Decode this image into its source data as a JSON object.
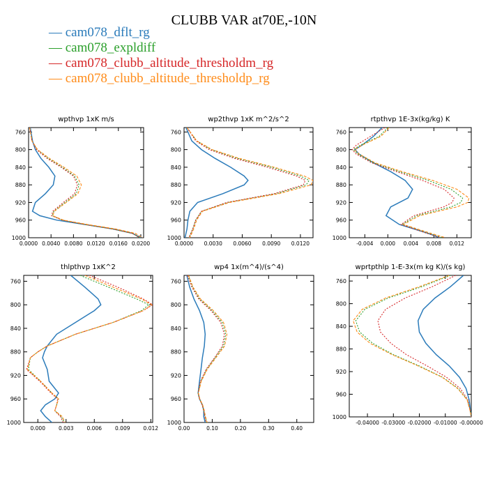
{
  "title": "CLUBB VAR at70E,-10N",
  "legend": [
    {
      "name": "cam078_dflt_rg",
      "color": "#2b7bba"
    },
    {
      "name": "cam078_expldiff",
      "color": "#2ca02c"
    },
    {
      "name": "cam078_clubb_altitude_thresholdm_rg",
      "color": "#d62728"
    },
    {
      "name": "cam078_clubb_altitude_thresholdp_rg",
      "color": "#ff8c1a"
    }
  ],
  "chart_data": [
    {
      "type": "line",
      "title": "wpthvp   1xK m/s",
      "xlim": [
        0,
        0.0205
      ],
      "ylim": [
        1000,
        750
      ],
      "xticks": [
        "0.0000",
        "0.0040",
        "0.0080",
        "0.0120",
        "0.0160",
        "0.0200"
      ],
      "xtick_values": [
        0,
        0.004,
        0.008,
        0.012,
        0.016,
        0.02
      ],
      "yticks": [
        760,
        800,
        840,
        880,
        920,
        960,
        1000
      ],
      "y": [
        750,
        780,
        800,
        820,
        840,
        860,
        880,
        900,
        920,
        940,
        950,
        960,
        970,
        980,
        990,
        1000
      ],
      "series": [
        {
          "name": "cam078_dflt_rg",
          "x": [
            0.0003,
            0.0007,
            0.0012,
            0.0022,
            0.0036,
            0.0047,
            0.0044,
            0.003,
            0.0012,
            0.0007,
            0.002,
            0.005,
            0.01,
            0.015,
            0.0185,
            0.02
          ]
        },
        {
          "name": "cam078_expldiff",
          "x": [
            0.0002,
            0.0006,
            0.0015,
            0.0035,
            0.006,
            0.0082,
            0.009,
            0.0085,
            0.0065,
            0.0045,
            0.0042,
            0.006,
            0.01,
            0.015,
            0.0185,
            0.0198
          ]
        },
        {
          "name": "cam078_clubb_altitude_thresholdm_rg",
          "x": [
            0.0002,
            0.0006,
            0.0014,
            0.0033,
            0.0058,
            0.008,
            0.0087,
            0.0082,
            0.0062,
            0.0043,
            0.0041,
            0.006,
            0.01,
            0.015,
            0.0185,
            0.0198
          ]
        },
        {
          "name": "cam078_clubb_altitude_thresholdp_rg",
          "x": [
            0.0002,
            0.0006,
            0.0016,
            0.0037,
            0.0063,
            0.0086,
            0.0094,
            0.0088,
            0.0067,
            0.0046,
            0.0043,
            0.0062,
            0.0105,
            0.0155,
            0.019,
            0.0203
          ]
        }
      ]
    },
    {
      "type": "line",
      "title": "wp2thvp   1xK m^2/s^2",
      "xlim": [
        0,
        0.0133
      ],
      "ylim": [
        1000,
        750
      ],
      "xticks": [
        "0.0000",
        "0.0030",
        "0.0060",
        "0.0090",
        "0.0120"
      ],
      "xtick_values": [
        0,
        0.003,
        0.006,
        0.009,
        0.012
      ],
      "yticks": [
        760,
        800,
        840,
        880,
        920,
        960,
        1000
      ],
      "y": [
        750,
        780,
        800,
        820,
        840,
        860,
        870,
        880,
        900,
        920,
        940,
        960,
        980,
        1000
      ],
      "series": [
        {
          "name": "cam078_dflt_rg",
          "x": [
            0.0002,
            0.0008,
            0.0018,
            0.0032,
            0.0048,
            0.0062,
            0.0066,
            0.0062,
            0.004,
            0.0014,
            0.0006,
            0.0004,
            0.0003,
            0.0001
          ]
        },
        {
          "name": "cam078_expldiff",
          "x": [
            0.0003,
            0.0013,
            0.0028,
            0.0055,
            0.009,
            0.012,
            0.0129,
            0.0126,
            0.0095,
            0.0045,
            0.0018,
            0.0012,
            0.0009,
            0.0005
          ]
        },
        {
          "name": "cam078_clubb_altitude_thresholdm_rg",
          "x": [
            0.0003,
            0.0012,
            0.0026,
            0.0052,
            0.0086,
            0.0116,
            0.0125,
            0.0123,
            0.0093,
            0.0044,
            0.0018,
            0.0012,
            0.0009,
            0.0005
          ]
        },
        {
          "name": "cam078_clubb_altitude_thresholdp_rg",
          "x": [
            0.0003,
            0.0013,
            0.0029,
            0.0057,
            0.0093,
            0.0124,
            0.0133,
            0.0131,
            0.0098,
            0.0047,
            0.0019,
            0.0013,
            0.001,
            0.0006
          ]
        }
      ]
    },
    {
      "type": "line",
      "title": "rtpthvp   1E-3x(kg/kg) K",
      "xlim": [
        -0.0067,
        0.0145
      ],
      "ylim": [
        1000,
        750
      ],
      "xticks": [
        "-0.004",
        "0.000",
        "0.004",
        "0.008",
        "0.012"
      ],
      "xtick_values": [
        -0.004,
        0,
        0.004,
        0.008,
        0.012
      ],
      "yticks": [
        760,
        800,
        840,
        880,
        920,
        960,
        1000
      ],
      "y": [
        750,
        770,
        790,
        800,
        810,
        830,
        850,
        870,
        890,
        910,
        920,
        930,
        950,
        970,
        990,
        1000
      ],
      "series": [
        {
          "name": "cam078_dflt_rg",
          "x": [
            -0.001,
            -0.0025,
            -0.0045,
            -0.0057,
            -0.005,
            -0.0025,
            0.0005,
            0.003,
            0.0043,
            0.0035,
            0.002,
            0.0005,
            -0.0003,
            0.002,
            0.007,
            0.009
          ]
        },
        {
          "name": "cam078_expldiff",
          "x": [
            0.0,
            -0.0015,
            -0.0048,
            -0.006,
            -0.0052,
            -0.0025,
            0.002,
            0.007,
            0.011,
            0.013,
            0.0127,
            0.011,
            0.005,
            0.0025,
            0.007,
            0.0095
          ]
        },
        {
          "name": "cam078_clubb_altitude_thresholdm_rg",
          "x": [
            -0.0005,
            -0.003,
            -0.0055,
            -0.0062,
            -0.0055,
            -0.0028,
            0.0015,
            0.006,
            0.0098,
            0.0115,
            0.0112,
            0.0097,
            0.0045,
            0.0023,
            0.0068,
            0.0092
          ]
        },
        {
          "name": "cam078_clubb_altitude_thresholdp_rg",
          "x": [
            0.0002,
            -0.0012,
            -0.0045,
            -0.0058,
            -0.005,
            -0.0022,
            0.0025,
            0.0078,
            0.012,
            0.0141,
            0.0139,
            0.012,
            0.0055,
            0.0027,
            0.0075,
            0.01
          ]
        }
      ]
    },
    {
      "type": "line",
      "title": "thlpthvp   1xK^2",
      "xlim": [
        -0.0015,
        0.0122
      ],
      "ylim": [
        1000,
        750
      ],
      "xticks": [
        "0.000",
        "0.003",
        "0.006",
        "0.009",
        "0.012"
      ],
      "xtick_values": [
        0,
        0.003,
        0.006,
        0.009,
        0.012
      ],
      "yticks": [
        760,
        800,
        840,
        880,
        920,
        960,
        1000
      ],
      "y": [
        750,
        770,
        790,
        800,
        810,
        830,
        850,
        870,
        880,
        890,
        910,
        930,
        950,
        960,
        970,
        980,
        990,
        1000
      ],
      "series": [
        {
          "name": "cam078_dflt_rg",
          "x": [
            0.0035,
            0.005,
            0.0064,
            0.0067,
            0.006,
            0.004,
            0.002,
            0.001,
            0.0007,
            0.0005,
            0.001,
            0.0012,
            0.0022,
            0.0018,
            0.0008,
            0.0003,
            0.0008,
            0.0015
          ]
        },
        {
          "name": "cam078_expldiff",
          "x": [
            0.0045,
            0.0075,
            0.0105,
            0.0118,
            0.011,
            0.008,
            0.004,
            0.001,
            0.0,
            -0.0008,
            -0.001,
            0.0003,
            0.0015,
            0.0022,
            0.002,
            0.0018,
            0.0025,
            0.0028
          ]
        },
        {
          "name": "cam078_clubb_altitude_thresholdm_rg",
          "x": [
            0.0055,
            0.0085,
            0.0112,
            0.0122,
            0.0112,
            0.008,
            0.004,
            0.001,
            0.0,
            -0.0008,
            -0.0012,
            0.0002,
            0.0014,
            0.0021,
            0.002,
            0.0018,
            0.0024,
            0.0027
          ]
        },
        {
          "name": "cam078_clubb_altitude_thresholdp_rg",
          "x": [
            0.005,
            0.008,
            0.011,
            0.0121,
            0.0112,
            0.008,
            0.004,
            0.001,
            0.0,
            -0.0008,
            -0.0011,
            0.0003,
            0.0015,
            0.0022,
            0.002,
            0.0018,
            0.0026,
            0.0029
          ]
        }
      ]
    },
    {
      "type": "line",
      "title": "wp4   1x(m^4)/(s^4)",
      "xlim": [
        0,
        0.46
      ],
      "ylim": [
        1000,
        750
      ],
      "xticks": [
        "0.00",
        "0.10",
        "0.20",
        "0.30",
        "0.40"
      ],
      "xtick_values": [
        0,
        0.1,
        0.2,
        0.3,
        0.4
      ],
      "yticks": [
        760,
        800,
        840,
        880,
        920,
        960,
        1000
      ],
      "y": [
        750,
        770,
        790,
        810,
        830,
        850,
        870,
        890,
        910,
        930,
        950,
        960,
        970,
        980,
        990,
        1000
      ],
      "series": [
        {
          "name": "cam078_dflt_rg",
          "x": [
            0.01,
            0.02,
            0.035,
            0.055,
            0.07,
            0.075,
            0.072,
            0.065,
            0.06,
            0.055,
            0.05,
            0.055,
            0.065,
            0.07,
            0.07,
            0.075
          ]
        },
        {
          "name": "cam078_expldiff",
          "x": [
            0.015,
            0.03,
            0.055,
            0.1,
            0.135,
            0.148,
            0.14,
            0.11,
            0.08,
            0.06,
            0.05,
            0.055,
            0.065,
            0.07,
            0.075,
            0.08
          ]
        },
        {
          "name": "cam078_clubb_altitude_thresholdm_rg",
          "x": [
            0.012,
            0.028,
            0.052,
            0.096,
            0.13,
            0.143,
            0.136,
            0.108,
            0.078,
            0.058,
            0.05,
            0.055,
            0.064,
            0.07,
            0.074,
            0.078
          ]
        },
        {
          "name": "cam078_clubb_altitude_thresholdp_rg",
          "x": [
            0.016,
            0.032,
            0.058,
            0.104,
            0.14,
            0.152,
            0.144,
            0.113,
            0.082,
            0.061,
            0.051,
            0.056,
            0.066,
            0.072,
            0.076,
            0.082
          ]
        }
      ]
    },
    {
      "type": "line",
      "title": "wprtpthlp   1-E-3x(m kg K)/(s kg)",
      "xlim": [
        -0.047,
        0.0
      ],
      "ylim": [
        1000,
        750
      ],
      "xticks": [
        "-0.04000",
        "-0.03000",
        "-0.02000",
        "-0.01000",
        "-0.00000"
      ],
      "xtick_values": [
        -0.04,
        -0.03,
        -0.02,
        -0.01,
        0.0
      ],
      "yticks": [
        760,
        800,
        840,
        880,
        920,
        960,
        1000
      ],
      "y": [
        750,
        770,
        790,
        810,
        830,
        850,
        870,
        890,
        910,
        930,
        950,
        970,
        990,
        1000
      ],
      "series": [
        {
          "name": "cam078_dflt_rg",
          "x": [
            -0.003,
            -0.008,
            -0.014,
            -0.0185,
            -0.0205,
            -0.02,
            -0.0175,
            -0.0135,
            -0.0085,
            -0.0045,
            -0.002,
            -0.0008,
            -0.0003,
            0.0
          ]
        },
        {
          "name": "cam078_expldiff",
          "x": [
            -0.008,
            -0.019,
            -0.032,
            -0.041,
            -0.0445,
            -0.043,
            -0.038,
            -0.03,
            -0.02,
            -0.011,
            -0.005,
            -0.0015,
            -0.0004,
            0.0
          ]
        },
        {
          "name": "cam078_clubb_altitude_thresholdm_rg",
          "x": [
            -0.006,
            -0.015,
            -0.0255,
            -0.033,
            -0.036,
            -0.035,
            -0.031,
            -0.025,
            -0.017,
            -0.0095,
            -0.0042,
            -0.0013,
            -0.0004,
            0.0
          ]
        },
        {
          "name": "cam078_clubb_altitude_thresholdp_rg",
          "x": [
            -0.0085,
            -0.02,
            -0.033,
            -0.042,
            -0.0455,
            -0.044,
            -0.039,
            -0.0305,
            -0.0205,
            -0.0112,
            -0.0052,
            -0.0016,
            -0.0004,
            0.0
          ]
        }
      ]
    }
  ]
}
